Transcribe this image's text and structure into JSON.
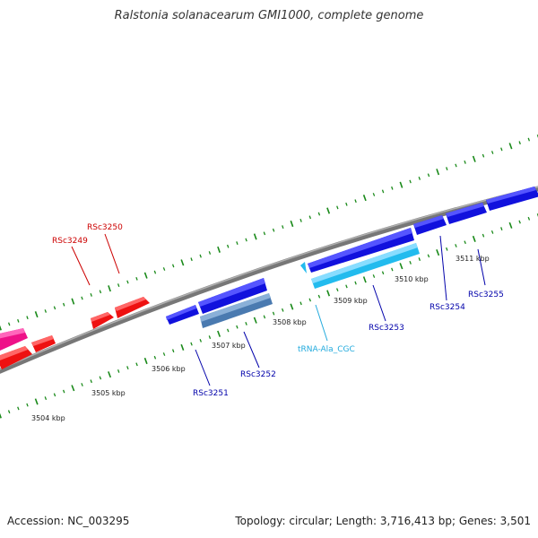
{
  "title": "Ralstonia solanacearum GMI1000, complete genome",
  "footer": {
    "accession": "Accession: NC_003295",
    "summary": "Topology: circular; Length: 3,716,413 bp; Genes: 3,501"
  },
  "colors": {
    "backbone": "#888888",
    "ticks": "#1a8a1a",
    "red_genes": "#ee1111",
    "pink_genes": "#ee1188",
    "blue_genes": "#1111dd",
    "cyan_genes": "#22bbee",
    "steel_genes": "#4a7ab0",
    "red_label": "#cc0000",
    "blue_label": "#0000aa",
    "cyan_label": "#22aadd"
  },
  "scale_labels": [
    "3504 kbp",
    "3505 kbp",
    "3506 kbp",
    "3507 kbp",
    "3508 kbp",
    "3509 kbp",
    "3510 kbp",
    "3511 kbp"
  ],
  "gene_labels": {
    "rsc3249": "RSc3249",
    "rsc3250": "RSc3250",
    "rsc3251": "RSc3251",
    "rsc3252": "RSc3252",
    "trna": "tRNA-Ala_CGC",
    "rsc3253": "RSc3253",
    "rsc3254": "RSc3254",
    "rsc3255": "RSc3255"
  }
}
